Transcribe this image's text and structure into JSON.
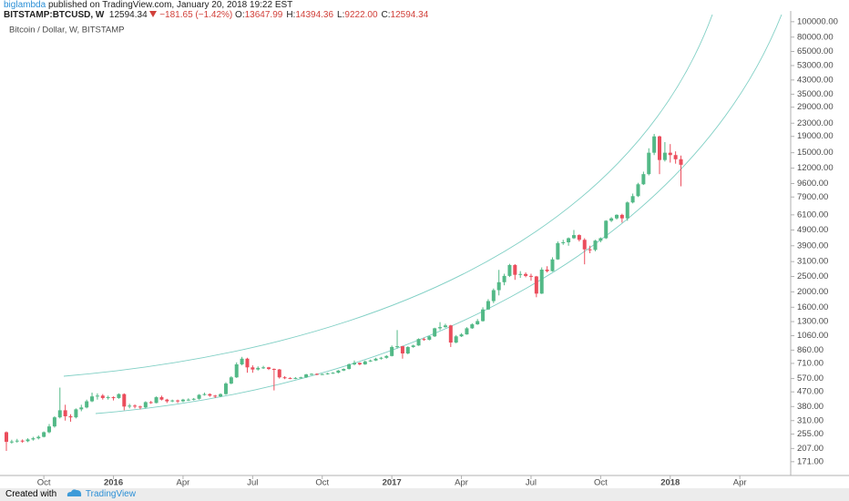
{
  "header": {
    "author": "biglambda",
    "published": "published on TradingView.com, January 20, 2018 19:22 EST",
    "symbol": "BITSTAMP:BTCUSD, W",
    "last": "12594.34",
    "change": "−181.65 (−1.42%)",
    "ohlc": [
      {
        "label": "O:",
        "value": "13647.99"
      },
      {
        "label": "H:",
        "value": "14394.36"
      },
      {
        "label": "L:",
        "value": "9222.00"
      },
      {
        "label": "C:",
        "value": "12594.34"
      }
    ]
  },
  "footer": {
    "created": "Created with",
    "brand": "TradingView"
  },
  "chart_data": {
    "type": "candlestick",
    "title": "Bitcoin / Dollar, W, BITSTAMP",
    "log_scale": true,
    "grid": false,
    "up_color": "#53b987",
    "down_color": "#eb4d5c",
    "categories": [
      null,
      null,
      null,
      null,
      null,
      null,
      null,
      "Oct",
      null,
      null,
      null,
      null,
      null,
      null,
      null,
      null,
      null,
      null,
      null,
      null,
      "2016",
      null,
      null,
      null,
      null,
      null,
      null,
      null,
      null,
      null,
      null,
      null,
      null,
      "Apr",
      null,
      null,
      null,
      null,
      null,
      null,
      null,
      null,
      null,
      null,
      null,
      null,
      "Jul",
      null,
      null,
      null,
      null,
      null,
      null,
      null,
      null,
      null,
      null,
      null,
      null,
      "Oct",
      null,
      null,
      null,
      null,
      null,
      null,
      null,
      null,
      null,
      null,
      null,
      null,
      "2017",
      null,
      null,
      null,
      null,
      null,
      null,
      null,
      null,
      null,
      null,
      null,
      null,
      "Apr",
      null,
      null,
      null,
      null,
      null,
      null,
      null,
      null,
      null,
      null,
      null,
      null,
      "Jul",
      null,
      null,
      null,
      null,
      null,
      null,
      null,
      null,
      null,
      null,
      null,
      null,
      "Oct",
      null,
      null,
      null,
      null,
      null,
      null,
      null,
      null,
      null,
      null,
      null,
      null,
      "2018",
      null,
      null,
      null,
      null,
      null,
      null,
      null,
      null,
      null,
      null,
      null,
      null,
      "Apr",
      null,
      null,
      null,
      null,
      null,
      null,
      null,
      null,
      null
    ],
    "open": [
      262,
      228,
      229,
      232,
      230,
      236,
      240,
      245,
      262,
      285,
      325,
      360,
      330,
      325,
      365,
      375,
      410,
      440,
      445,
      430,
      435,
      430,
      455,
      380,
      385,
      380,
      375,
      405,
      400,
      435,
      420,
      410,
      415,
      410,
      420,
      420,
      425,
      450,
      455,
      445,
      440,
      455,
      530,
      580,
      700,
      760,
      670,
      650,
      665,
      670,
      655,
      650,
      580,
      575,
      572,
      575,
      580,
      605,
      610,
      605,
      608,
      615,
      620,
      640,
      655,
      700,
      715,
      700,
      730,
      740,
      760,
      770,
      790,
      900,
      910,
      820,
      900,
      920,
      1010,
      1000,
      1050,
      1180,
      1200,
      1230,
      960,
      1050,
      1080,
      1180,
      1250,
      1310,
      1550,
      1750,
      2050,
      2300,
      2520,
      2950,
      2560,
      2590,
      2520,
      2500,
      1950,
      2760,
      2700,
      3200,
      4050,
      4100,
      4350,
      4550,
      4250,
      3700,
      3670,
      4200,
      4350,
      5600,
      5800,
      6100,
      5800,
      7300,
      8000,
      9500,
      11000,
      15000,
      19000,
      13500,
      15000,
      14500,
      13647.99,
      null,
      null,
      null,
      null,
      null,
      null,
      null,
      null,
      null,
      null,
      null,
      null,
      null,
      null,
      null,
      null,
      null,
      null,
      null,
      null
    ],
    "high": [
      265,
      235,
      238,
      236,
      240,
      245,
      250,
      265,
      295,
      330,
      500,
      390,
      340,
      370,
      390,
      420,
      465,
      460,
      455,
      445,
      440,
      460,
      460,
      395,
      392,
      385,
      410,
      412,
      440,
      445,
      425,
      420,
      420,
      425,
      428,
      430,
      455,
      465,
      460,
      450,
      460,
      540,
      590,
      720,
      780,
      770,
      690,
      680,
      685,
      675,
      660,
      655,
      590,
      580,
      582,
      585,
      610,
      615,
      615,
      612,
      620,
      625,
      645,
      660,
      710,
      740,
      720,
      740,
      750,
      770,
      780,
      800,
      920,
      1150,
      915,
      910,
      930,
      1020,
      1030,
      1060,
      1190,
      1290,
      1260,
      1240,
      1070,
      1100,
      1200,
      1270,
      1350,
      1600,
      1800,
      2100,
      2750,
      2600,
      3000,
      2990,
      2700,
      2650,
      2600,
      2520,
      2850,
      2900,
      3300,
      4150,
      4250,
      4400,
      4900,
      4600,
      4350,
      3900,
      4250,
      4400,
      5650,
      5900,
      6150,
      6200,
      7400,
      8300,
      9700,
      11400,
      16000,
      19700,
      19200,
      17500,
      17000,
      15300,
      14394.36,
      null,
      null,
      null,
      null,
      null,
      null,
      null,
      null,
      null,
      null,
      null,
      null,
      null,
      null,
      null,
      null,
      null,
      null,
      null,
      null
    ],
    "low": [
      200,
      222,
      225,
      225,
      227,
      232,
      236,
      243,
      258,
      280,
      320,
      310,
      305,
      320,
      355,
      370,
      405,
      420,
      420,
      420,
      415,
      425,
      360,
      370,
      370,
      365,
      370,
      395,
      398,
      415,
      400,
      405,
      400,
      405,
      412,
      415,
      420,
      445,
      438,
      430,
      435,
      450,
      525,
      575,
      690,
      620,
      620,
      640,
      655,
      645,
      480,
      570,
      565,
      565,
      565,
      570,
      575,
      600,
      598,
      600,
      603,
      610,
      615,
      635,
      650,
      690,
      690,
      695,
      725,
      735,
      750,
      760,
      785,
      880,
      760,
      810,
      890,
      915,
      985,
      990,
      1040,
      1150,
      1190,
      900,
      950,
      1040,
      1075,
      1170,
      1240,
      1300,
      1540,
      1700,
      1900,
      2200,
      2480,
      2380,
      2450,
      2470,
      2350,
      1850,
      1940,
      2650,
      2680,
      3180,
      3950,
      3900,
      4300,
      4150,
      2980,
      3500,
      3600,
      4100,
      4300,
      5500,
      5700,
      5450,
      5600,
      7200,
      7900,
      9400,
      10800,
      14500,
      11000,
      13200,
      13000,
      12800,
      9222,
      null,
      null,
      null,
      null,
      null,
      null,
      null,
      null,
      null,
      null,
      null,
      null,
      null,
      null,
      null,
      null,
      null,
      null,
      null,
      null
    ],
    "close": [
      228,
      229,
      232,
      230,
      236,
      240,
      245,
      262,
      285,
      325,
      360,
      330,
      325,
      365,
      375,
      410,
      440,
      445,
      430,
      435,
      430,
      455,
      380,
      385,
      380,
      375,
      405,
      400,
      435,
      420,
      410,
      415,
      410,
      420,
      420,
      425,
      450,
      455,
      445,
      440,
      455,
      530,
      580,
      700,
      760,
      670,
      650,
      665,
      670,
      655,
      650,
      580,
      575,
      572,
      575,
      580,
      605,
      610,
      605,
      608,
      615,
      620,
      640,
      655,
      700,
      715,
      700,
      730,
      740,
      760,
      770,
      790,
      900,
      910,
      820,
      900,
      920,
      1010,
      1000,
      1050,
      1180,
      1200,
      1230,
      960,
      1050,
      1080,
      1180,
      1250,
      1310,
      1550,
      1750,
      2050,
      2300,
      2520,
      2950,
      2560,
      2590,
      2520,
      2500,
      1950,
      2760,
      2700,
      3200,
      4050,
      4100,
      4350,
      4550,
      4250,
      3700,
      3670,
      4200,
      4350,
      5600,
      5800,
      6100,
      5800,
      7300,
      8000,
      9500,
      11000,
      15000,
      19000,
      13500,
      15000,
      14500,
      13650,
      12594.34,
      null,
      null,
      null,
      null,
      null,
      null,
      null,
      null,
      null,
      null,
      null,
      null,
      null,
      null,
      null,
      null,
      null,
      null,
      null,
      null
    ],
    "ylim": [
      140,
      108000
    ],
    "yticks": [
      {
        "value": 100000,
        "label": "100000.00"
      },
      {
        "value": 80000,
        "label": "80000.00"
      },
      {
        "value": 65000,
        "label": "65000.00"
      },
      {
        "value": 53000,
        "label": "53000.00"
      },
      {
        "value": 43000,
        "label": "43000.00"
      },
      {
        "value": 35000,
        "label": "35000.00"
      },
      {
        "value": 29000,
        "label": "29000.00"
      },
      {
        "value": 23000,
        "label": "23000.00"
      },
      {
        "value": 19000,
        "label": "19000.00"
      },
      {
        "value": 15000,
        "label": "15000.00"
      },
      {
        "value": 12000,
        "label": "12000.00"
      },
      {
        "value": 9600,
        "label": "9600.00"
      },
      {
        "value": 7900,
        "label": "7900.00"
      },
      {
        "value": 6100,
        "label": "6100.00"
      },
      {
        "value": 4900,
        "label": "4900.00"
      },
      {
        "value": 3900,
        "label": "3900.00"
      },
      {
        "value": 3100,
        "label": "3100.00"
      },
      {
        "value": 2500,
        "label": "2500.00"
      },
      {
        "value": 2000,
        "label": "2000.00"
      },
      {
        "value": 1600,
        "label": "1600.00"
      },
      {
        "value": 1300,
        "label": "1300.00"
      },
      {
        "value": 1060,
        "label": "1060.00"
      },
      {
        "value": 860,
        "label": "860.00"
      },
      {
        "value": 710,
        "label": "710.00"
      },
      {
        "value": 570,
        "label": "570.00"
      },
      {
        "value": 470,
        "label": "470.00"
      },
      {
        "value": 380,
        "label": "380.00"
      },
      {
        "value": 310,
        "label": "310.00"
      },
      {
        "value": 255,
        "label": "255.00"
      },
      {
        "value": 207,
        "label": "207.00"
      },
      {
        "value": 171,
        "label": "171.00"
      }
    ]
  }
}
